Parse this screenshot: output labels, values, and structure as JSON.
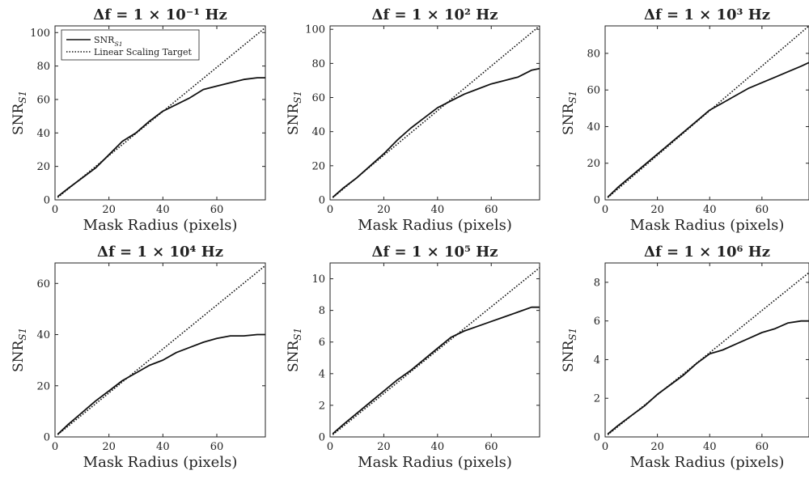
{
  "chart_data": [
    {
      "type": "line",
      "title": "Δf = 1 × 10⁻¹ Hz",
      "xlabel": "Mask Radius (pixels)",
      "ylabel": "SNR_S1",
      "xlim": [
        0,
        78
      ],
      "ylim": [
        0,
        104
      ],
      "xticks": [
        0,
        20,
        40,
        60
      ],
      "yticks": [
        0,
        20,
        40,
        60,
        80,
        100
      ],
      "legend": {
        "location": "top-left",
        "entries": [
          "SNR_S1",
          "Linear Scaling Target"
        ]
      },
      "series": [
        {
          "name": "SNR_S1",
          "style": "solid",
          "x": [
            1,
            5,
            10,
            15,
            20,
            25,
            30,
            35,
            40,
            45,
            50,
            55,
            60,
            65,
            70,
            75,
            78
          ],
          "y": [
            2,
            7,
            13,
            19,
            27,
            35,
            40,
            47,
            53,
            57,
            61,
            66,
            68,
            70,
            72,
            73,
            73
          ]
        },
        {
          "name": "Linear Scaling Target",
          "style": "dotted",
          "x": [
            1,
            78
          ],
          "y": [
            1.4,
            103
          ]
        }
      ]
    },
    {
      "type": "line",
      "title": "Δf = 1 × 10² Hz",
      "xlabel": "Mask Radius (pixels)",
      "ylabel": "SNR_S1",
      "xlim": [
        0,
        78
      ],
      "ylim": [
        0,
        102
      ],
      "xticks": [
        0,
        20,
        40,
        60
      ],
      "yticks": [
        0,
        20,
        40,
        60,
        80,
        100
      ],
      "series": [
        {
          "name": "SNR_S1",
          "style": "solid",
          "x": [
            1,
            5,
            10,
            15,
            20,
            25,
            30,
            35,
            40,
            45,
            50,
            55,
            60,
            65,
            70,
            75,
            78
          ],
          "y": [
            1.5,
            7,
            13,
            20,
            27,
            35,
            42,
            48,
            54,
            58,
            62,
            65,
            68,
            70,
            72,
            76,
            77
          ]
        },
        {
          "name": "Linear Scaling Target",
          "style": "dotted",
          "x": [
            1,
            78
          ],
          "y": [
            1.3,
            102
          ]
        }
      ]
    },
    {
      "type": "line",
      "title": "Δf = 1 × 10³ Hz",
      "xlabel": "Mask Radius (pixels)",
      "ylabel": "SNR_S1",
      "xlim": [
        0,
        78
      ],
      "ylim": [
        0,
        95
      ],
      "xticks": [
        0,
        20,
        40,
        60
      ],
      "yticks": [
        0,
        20,
        40,
        60,
        80
      ],
      "series": [
        {
          "name": "SNR_S1",
          "style": "solid",
          "x": [
            1,
            5,
            10,
            15,
            20,
            25,
            30,
            35,
            40,
            45,
            50,
            55,
            60,
            65,
            70,
            75,
            78
          ],
          "y": [
            1.5,
            7,
            13,
            19,
            25,
            31,
            37,
            43,
            49,
            53,
            57,
            61,
            64,
            67,
            70,
            73,
            75
          ]
        },
        {
          "name": "Linear Scaling Target",
          "style": "dotted",
          "x": [
            1,
            78
          ],
          "y": [
            1.2,
            95
          ]
        }
      ]
    },
    {
      "type": "line",
      "title": "Δf = 1 × 10⁴ Hz",
      "xlabel": "Mask Radius (pixels)",
      "ylabel": "SNR_S1",
      "xlim": [
        0,
        78
      ],
      "ylim": [
        0,
        68
      ],
      "xticks": [
        0,
        20,
        40,
        60
      ],
      "yticks": [
        0,
        20,
        40,
        60
      ],
      "series": [
        {
          "name": "SNR_S1",
          "style": "solid",
          "x": [
            1,
            5,
            10,
            15,
            20,
            25,
            30,
            35,
            40,
            45,
            50,
            55,
            60,
            65,
            70,
            75,
            78
          ],
          "y": [
            1,
            5,
            9.5,
            14,
            18,
            22,
            25,
            28,
            30,
            33,
            35,
            37,
            38.5,
            39.5,
            39.5,
            40,
            40
          ]
        },
        {
          "name": "Linear Scaling Target",
          "style": "dotted",
          "x": [
            1,
            78
          ],
          "y": [
            0.9,
            67
          ]
        }
      ]
    },
    {
      "type": "line",
      "title": "Δf = 1 × 10⁵ Hz",
      "xlabel": "Mask Radius (pixels)",
      "ylabel": "SNR_S1",
      "xlim": [
        0,
        78
      ],
      "ylim": [
        0,
        11
      ],
      "xticks": [
        0,
        20,
        40,
        60
      ],
      "yticks": [
        0,
        2,
        4,
        6,
        8,
        10
      ],
      "series": [
        {
          "name": "SNR_S1",
          "style": "solid",
          "x": [
            1,
            5,
            10,
            15,
            20,
            25,
            30,
            35,
            40,
            45,
            50,
            55,
            60,
            65,
            70,
            75,
            78
          ],
          "y": [
            0.2,
            0.8,
            1.5,
            2.2,
            2.9,
            3.6,
            4.2,
            4.9,
            5.6,
            6.3,
            6.7,
            7.0,
            7.3,
            7.6,
            7.9,
            8.2,
            8.2
          ]
        },
        {
          "name": "Linear Scaling Target",
          "style": "dotted",
          "x": [
            1,
            78
          ],
          "y": [
            0.14,
            10.7
          ]
        }
      ]
    },
    {
      "type": "line",
      "title": "Δf = 1 × 10⁶ Hz",
      "xlabel": "Mask Radius (pixels)",
      "ylabel": "SNR_S1",
      "xlim": [
        0,
        78
      ],
      "ylim": [
        0,
        9
      ],
      "xticks": [
        0,
        20,
        40,
        60
      ],
      "yticks": [
        0,
        2,
        4,
        6,
        8
      ],
      "series": [
        {
          "name": "SNR_S1",
          "style": "solid",
          "x": [
            1,
            5,
            10,
            15,
            20,
            25,
            30,
            35,
            40,
            45,
            50,
            55,
            60,
            65,
            70,
            75,
            78
          ],
          "y": [
            0.15,
            0.6,
            1.1,
            1.6,
            2.2,
            2.7,
            3.2,
            3.8,
            4.3,
            4.5,
            4.8,
            5.1,
            5.4,
            5.6,
            5.9,
            6.0,
            6.0
          ]
        },
        {
          "name": "Linear Scaling Target",
          "style": "dotted",
          "x": [
            1,
            78
          ],
          "y": [
            0.11,
            8.5
          ]
        }
      ]
    }
  ]
}
